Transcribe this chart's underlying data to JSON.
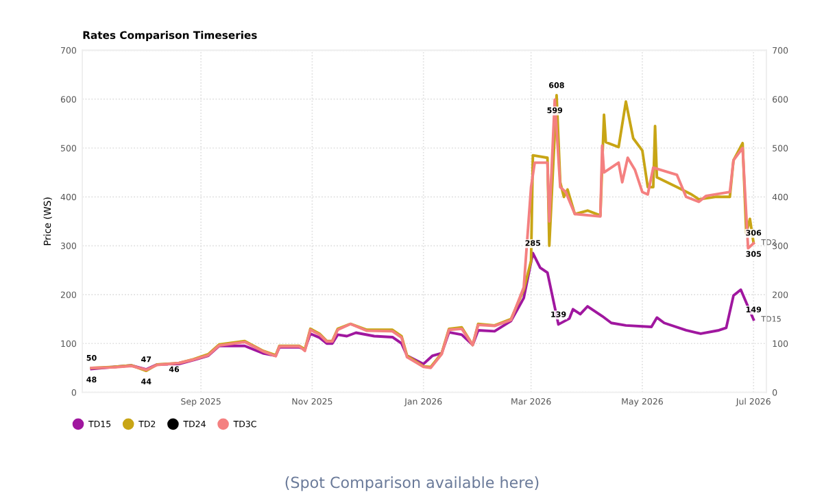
{
  "chart_data": {
    "type": "line",
    "title": "Rates Comparison Timeseries",
    "ylabel": "Price (WS)",
    "ylim": [
      0,
      700
    ],
    "yticks": [
      0,
      100,
      200,
      300,
      400,
      500,
      600,
      700
    ],
    "y2lim": [
      0,
      700
    ],
    "y2ticks": [
      0,
      100,
      200,
      300,
      400,
      500,
      600,
      700
    ],
    "xlim": [
      "2025-06-28",
      "2026-07-08"
    ],
    "xticks": [
      {
        "value": "2025-09-01",
        "label": "Sep 2025"
      },
      {
        "value": "2025-11-01",
        "label": "Nov 2025"
      },
      {
        "value": "2026-01-01",
        "label": "Jan 2026"
      },
      {
        "value": "2026-03-01",
        "label": "Mar 2026"
      },
      {
        "value": "2026-05-01",
        "label": "May 2026"
      },
      {
        "value": "2026-07-01",
        "label": "Jul 2026"
      }
    ],
    "grid": true,
    "legend": "bottom left",
    "marker": "none",
    "line_style": "solid",
    "series": [
      {
        "name": "TD15",
        "color": "#a0179f",
        "x": [
          "2025-07-03",
          "2025-07-15",
          "2025-07-25",
          "2025-08-02",
          "2025-08-08",
          "2025-08-20",
          "2025-08-28",
          "2025-09-05",
          "2025-09-11",
          "2025-09-25",
          "2025-10-05",
          "2025-10-12",
          "2025-10-14",
          "2025-10-25",
          "2025-10-28",
          "2025-10-31",
          "2025-11-05",
          "2025-11-09",
          "2025-11-12",
          "2025-11-15",
          "2025-11-20",
          "2025-11-25",
          "2025-12-05",
          "2025-12-15",
          "2025-12-20",
          "2025-12-23",
          "2026-01-01",
          "2026-01-06",
          "2026-01-11",
          "2026-01-15",
          "2026-01-22",
          "2026-01-28",
          "2026-01-31",
          "2026-02-09",
          "2026-02-18",
          "2026-02-25",
          "2026-03-02",
          "2026-03-06",
          "2026-03-10",
          "2026-03-16",
          "2026-03-22",
          "2026-03-24",
          "2026-03-28",
          "2026-04-01",
          "2026-04-09",
          "2026-04-14",
          "2026-04-22",
          "2026-05-06",
          "2026-05-09",
          "2026-05-13",
          "2026-05-25",
          "2026-06-02",
          "2026-06-12",
          "2026-06-16",
          "2026-06-20",
          "2026-06-24",
          "2026-06-28",
          "2026-07-01"
        ],
        "values": [
          48,
          52,
          55,
          47,
          57,
          58,
          66,
          75,
          95,
          95,
          80,
          75,
          92,
          92,
          88,
          120,
          112,
          100,
          100,
          118,
          115,
          122,
          115,
          113,
          100,
          75,
          58,
          75,
          80,
          123,
          118,
          97,
          127,
          125,
          146,
          193,
          285,
          255,
          245,
          139,
          151,
          170,
          160,
          176,
          156,
          142,
          137,
          134,
          153,
          142,
          127,
          120,
          127,
          132,
          198,
          210,
          175,
          149
        ]
      },
      {
        "name": "TD2",
        "color": "#c8a515",
        "x": [
          "2025-07-03",
          "2025-07-15",
          "2025-07-25",
          "2025-08-02",
          "2025-08-08",
          "2025-08-20",
          "2025-08-28",
          "2025-09-05",
          "2025-09-11",
          "2025-09-25",
          "2025-10-05",
          "2025-10-12",
          "2025-10-14",
          "2025-10-25",
          "2025-10-28",
          "2025-10-31",
          "2025-11-05",
          "2025-11-09",
          "2025-11-12",
          "2025-11-15",
          "2025-11-22",
          "2025-12-01",
          "2025-12-15",
          "2025-12-20",
          "2025-12-23",
          "2026-01-01",
          "2026-01-05",
          "2026-01-11",
          "2026-01-15",
          "2026-01-22",
          "2026-01-28",
          "2026-01-31",
          "2026-02-09",
          "2026-02-18",
          "2026-02-25",
          "2026-03-01",
          "2026-03-02",
          "2026-03-10",
          "2026-03-11",
          "2026-03-15",
          "2026-03-17",
          "2026-03-19",
          "2026-03-21",
          "2026-03-25",
          "2026-04-01",
          "2026-04-08",
          "2026-04-10",
          "2026-04-11",
          "2026-04-18",
          "2026-04-22",
          "2026-04-26",
          "2026-05-01",
          "2026-05-04",
          "2026-05-07",
          "2026-05-08",
          "2026-05-09",
          "2026-05-20",
          "2026-05-28",
          "2026-06-01",
          "2026-06-10",
          "2026-06-18",
          "2026-06-20",
          "2026-06-25",
          "2026-06-27",
          "2026-06-29",
          "2026-07-01"
        ],
        "values": [
          50,
          52,
          55,
          44,
          57,
          60,
          68,
          78,
          98,
          105,
          85,
          76,
          95,
          95,
          88,
          130,
          120,
          105,
          105,
          130,
          140,
          128,
          128,
          115,
          75,
          53,
          52,
          80,
          130,
          133,
          97,
          140,
          137,
          150,
          210,
          269,
          485,
          480,
          300,
          608,
          430,
          400,
          415,
          365,
          372,
          362,
          568,
          512,
          502,
          595,
          520,
          495,
          420,
          420,
          545,
          440,
          420,
          405,
          395,
          400,
          400,
          475,
          510,
          325,
          355,
          306
        ]
      },
      {
        "name": "TD24",
        "color": "#000000"
      },
      {
        "name": "TD3C",
        "color": "#f48080",
        "x": [
          "2025-07-03",
          "2025-07-15",
          "2025-07-25",
          "2025-08-02",
          "2025-08-08",
          "2025-08-20",
          "2025-08-28",
          "2025-09-05",
          "2025-09-11",
          "2025-09-25",
          "2025-10-05",
          "2025-10-12",
          "2025-10-14",
          "2025-10-25",
          "2025-10-28",
          "2025-10-31",
          "2025-11-05",
          "2025-11-09",
          "2025-11-12",
          "2025-11-15",
          "2025-11-22",
          "2025-12-01",
          "2025-12-15",
          "2025-12-20",
          "2025-12-23",
          "2026-01-01",
          "2026-01-05",
          "2026-01-11",
          "2026-01-15",
          "2026-01-22",
          "2026-01-28",
          "2026-01-31",
          "2026-02-09",
          "2026-02-18",
          "2026-02-25",
          "2026-03-01",
          "2026-03-03",
          "2026-03-10",
          "2026-03-11",
          "2026-03-14",
          "2026-03-17",
          "2026-03-20",
          "2026-03-25",
          "2026-04-08",
          "2026-04-09",
          "2026-04-10",
          "2026-04-18",
          "2026-04-20",
          "2026-04-23",
          "2026-04-27",
          "2026-05-01",
          "2026-05-04",
          "2026-05-07",
          "2026-05-20",
          "2026-05-25",
          "2026-06-01",
          "2026-06-05",
          "2026-06-18",
          "2026-06-20",
          "2026-06-25",
          "2026-06-28",
          "2026-07-01"
        ],
        "values": [
          50,
          51,
          54,
          46,
          56,
          60,
          67,
          76,
          96,
          103,
          84,
          74,
          94,
          94,
          85,
          128,
          118,
          104,
          104,
          128,
          140,
          126,
          125,
          112,
          72,
          52,
          50,
          78,
          128,
          130,
          97,
          138,
          136,
          148,
          215,
          420,
          470,
          470,
          350,
          599,
          420,
          410,
          365,
          360,
          505,
          450,
          470,
          430,
          480,
          455,
          410,
          405,
          460,
          445,
          400,
          390,
          402,
          410,
          475,
          500,
          295,
          305
        ]
      }
    ],
    "annotations": [
      {
        "text": "50",
        "x": "2025-07-03",
        "y": 50
      },
      {
        "text": "48",
        "x": "2025-07-03",
        "y": 48
      },
      {
        "text": "47",
        "x": "2025-08-02",
        "y": 47
      },
      {
        "text": "44",
        "x": "2025-08-02",
        "y": 44
      },
      {
        "text": "46",
        "x": "2025-08-05",
        "y": 46
      },
      {
        "text": "285",
        "x": "2026-03-02",
        "y": 285
      },
      {
        "text": "139",
        "x": "2026-03-16",
        "y": 139
      },
      {
        "text": "608",
        "x": "2026-03-15",
        "y": 608
      },
      {
        "text": "599",
        "x": "2026-03-14",
        "y": 599
      },
      {
        "text": "306",
        "x": "2026-07-01",
        "y": 306
      },
      {
        "text": "305",
        "x": "2026-07-01",
        "y": 305
      },
      {
        "text": "149",
        "x": "2026-07-01",
        "y": 149
      },
      {
        "text": "TD2",
        "x": "2026-07-01",
        "y": 306
      },
      {
        "text": "TD15",
        "x": "2026-07-01",
        "y": 149
      },
      "(Spot Comparison available here)"
    ]
  }
}
